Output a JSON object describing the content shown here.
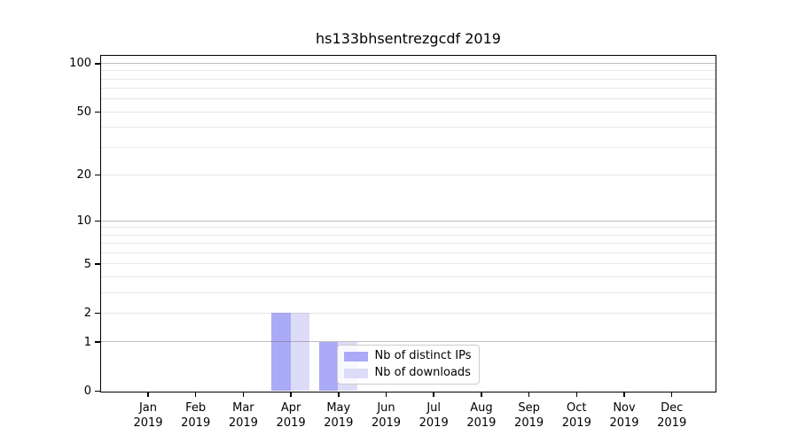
{
  "title": "hs133bhsentrezgcdf 2019",
  "chart_data": {
    "type": "bar",
    "title": "hs133bhsentrezgcdf 2019",
    "categories": [
      "Jan",
      "Feb",
      "Mar",
      "Apr",
      "May",
      "Jun",
      "Jul",
      "Aug",
      "Sep",
      "Oct",
      "Nov",
      "Dec"
    ],
    "x_year_label": "2019",
    "series": [
      {
        "name": "Nb of distinct IPs",
        "color": "#aaaaf7",
        "values": [
          0,
          0,
          0,
          2,
          1,
          0,
          0,
          0,
          0,
          0,
          0,
          0
        ]
      },
      {
        "name": "Nb of downloads",
        "color": "#dcdcf8",
        "values": [
          0,
          0,
          0,
          2,
          1,
          0,
          0,
          0,
          0,
          0,
          0,
          0
        ]
      }
    ],
    "yscale": "log1p",
    "ylim": [
      0,
      111.3
    ],
    "yticks": [
      0,
      1,
      2,
      5,
      10,
      20,
      50,
      100
    ],
    "grid_major_values": [
      1,
      10,
      100
    ],
    "grid_minor_values": [
      2,
      3,
      4,
      5,
      6,
      7,
      8,
      9,
      20,
      30,
      40,
      50,
      60,
      70,
      80,
      90
    ],
    "xlabel": "",
    "ylabel": "",
    "legend_position": "lower center",
    "grid": "horizontal",
    "colors": {
      "axis": "#000000",
      "grid_major": "#c8c8c8",
      "grid_minor": "#ececec",
      "background": "#ffffff"
    }
  }
}
